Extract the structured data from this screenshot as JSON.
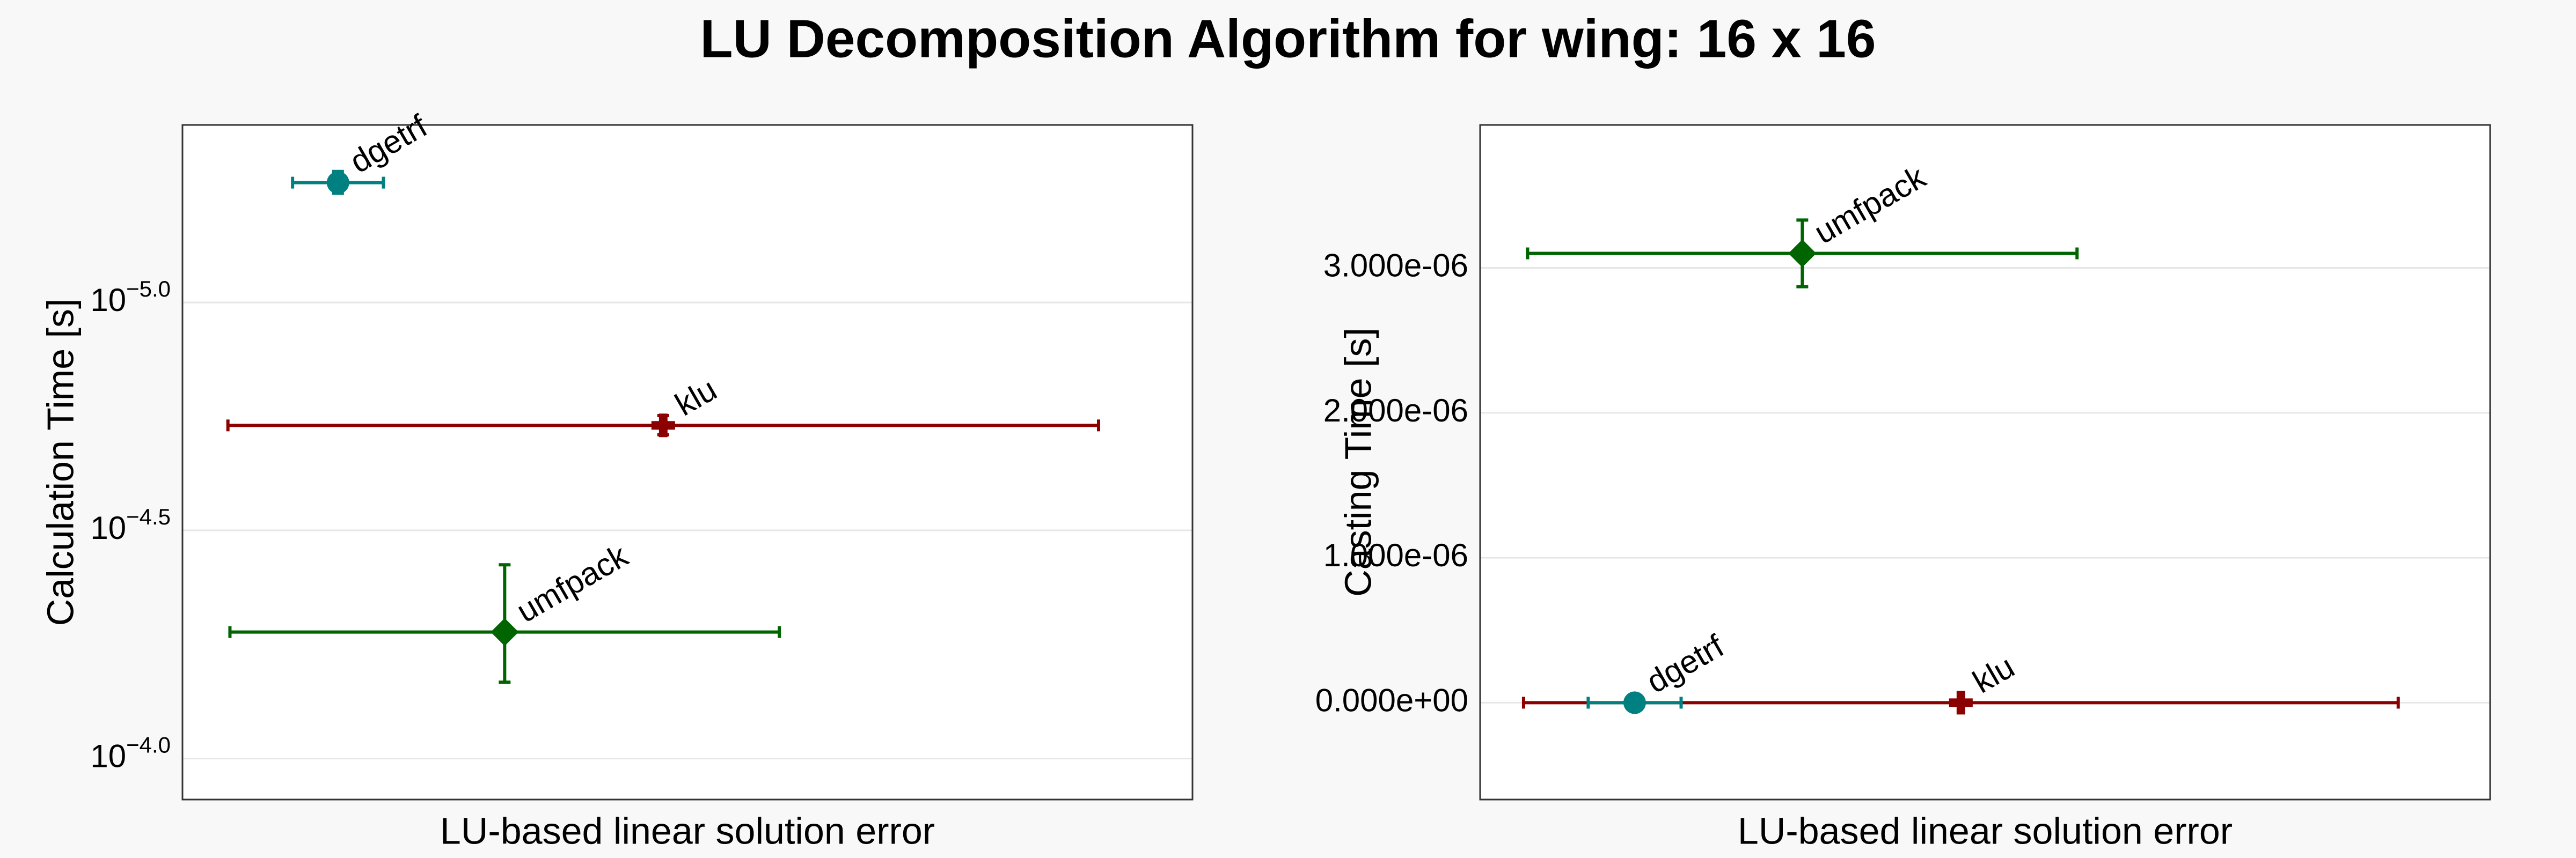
{
  "title": "LU Decomposition Algorithm for wing: 16 x 16",
  "chart_data": [
    {
      "type": "scatter",
      "log_y": true,
      "grid": true,
      "y_label": "Calculation Time [s]",
      "x_label": "LU-based linear solution error",
      "xlim": [
        0,
        100
      ],
      "ylim": [
        0.000123,
        4.08e-06
      ],
      "yticks": [
        {
          "value": 0.0001,
          "label": "10",
          "exponent": "−4.0"
        },
        {
          "value": 3.16e-05,
          "label": "10",
          "exponent": "−4.5"
        },
        {
          "value": 1e-05,
          "label": "10",
          "exponent": "−5.0"
        }
      ],
      "series": [
        {
          "name": "umfpack",
          "color": "#006400",
          "marker": "diamond",
          "x": [
            31.9
          ],
          "x_err": [
            27.2
          ],
          "values": [
            5.28e-05
          ],
          "y_err": [
            1.52e-05
          ]
        },
        {
          "name": "klu",
          "color": "#8b0000",
          "marker": "cross",
          "x": [
            47.6
          ],
          "x_err": [
            43.1
          ],
          "values": [
            1.86e-05
          ],
          "y_err": [
            9e-07
          ]
        },
        {
          "name": "dgetrf",
          "color": "#008080",
          "marker": "circle",
          "x": [
            15.4
          ],
          "x_err": [
            4.5
          ],
          "values": [
            5.46e-06
          ],
          "y_err": [
            3e-07
          ]
        }
      ]
    },
    {
      "type": "scatter",
      "log_y": false,
      "grid": true,
      "y_label": "Casting Time [s]",
      "x_label": "LU-based linear solution error",
      "xlim": [
        0,
        100
      ],
      "ylim": [
        -6.68e-07,
        3.986e-06
      ],
      "yticks": [
        {
          "value": 0,
          "label": "0.000e+00"
        },
        {
          "value": 1e-06,
          "label": "1.000e-06"
        },
        {
          "value": 2e-06,
          "label": "2.000e-06"
        },
        {
          "value": 3e-06,
          "label": "3.000e-06"
        }
      ],
      "series": [
        {
          "name": "umfpack",
          "color": "#006400",
          "marker": "diamond",
          "x": [
            31.9
          ],
          "x_err": [
            27.2
          ],
          "values": [
            3.1e-06
          ],
          "y_err": [
            2.3e-07
          ]
        },
        {
          "name": "klu",
          "color": "#8b0000",
          "marker": "cross",
          "x": [
            47.6
          ],
          "x_err": [
            43.3
          ],
          "values": [
            0
          ],
          "y_err": [
            null
          ]
        },
        {
          "name": "dgetrf",
          "color": "#008080",
          "marker": "circle",
          "x": [
            15.3
          ],
          "x_err": [
            4.6
          ],
          "values": [
            0
          ],
          "y_err": [
            null
          ]
        }
      ]
    }
  ]
}
